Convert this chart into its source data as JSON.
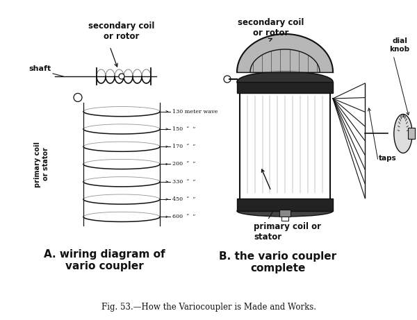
{
  "fig_caption": "Fig. 53.—How the Variocoupler is Made and Works.",
  "label_A": "A. wiring diagram of\nvario coupler",
  "label_B": "B. the vario coupler\ncomplete",
  "label_secondary_coil_left": "secondary coil\nor rotor",
  "label_shaft": "shaft",
  "label_primary_coil": "primary coil\nor stator",
  "label_secondary_coil_right": "secondary coil\nor rotor",
  "label_dial_knob": "dial\nknob",
  "label_taps": "taps",
  "label_primary_coil_right": "primary coil or\nstator",
  "meter_waves": [
    "130 meter wave",
    "150  “  ”",
    "170  “  ”",
    "200  “  ”",
    "330  “  ”",
    "450  “  ”",
    "600  “  ”"
  ],
  "bg_color": "#ffffff",
  "ink_color": "#111111",
  "fig_width": 6.0,
  "fig_height": 4.61
}
